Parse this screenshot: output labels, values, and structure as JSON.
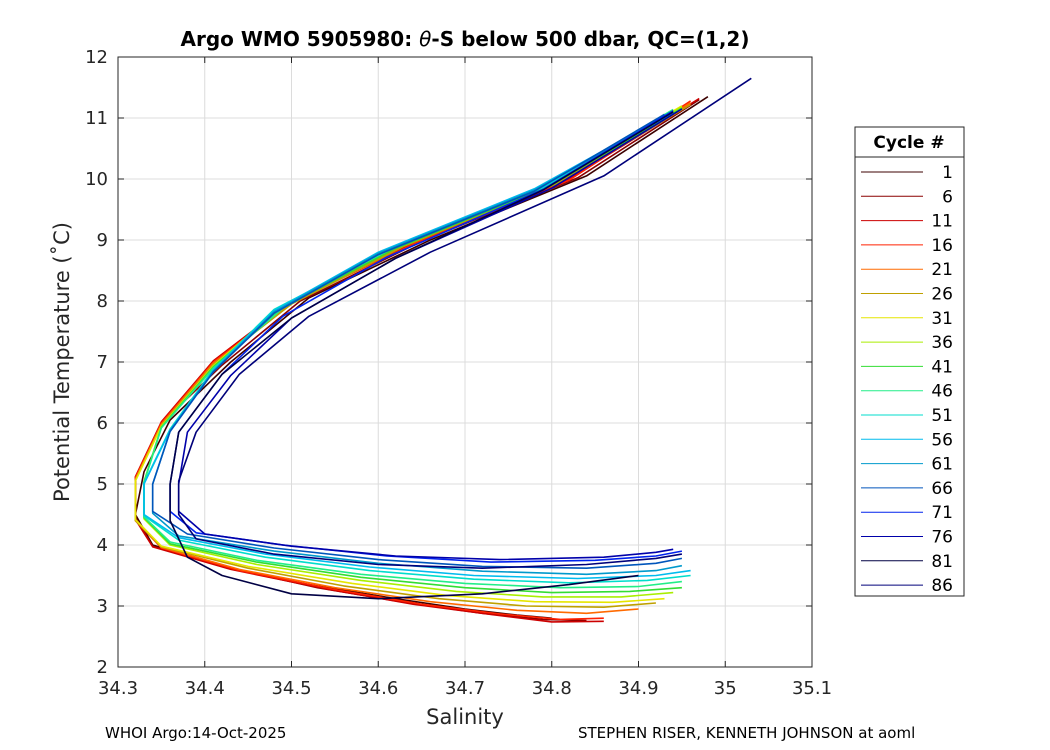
{
  "chart_data": {
    "type": "line",
    "title": "Argo WMO 5905980: θ-S below 500 dbar,  QC=(1,2)",
    "title_parts": {
      "prefix": "Argo WMO 5905980: ",
      "symbol": "θ",
      "suffix": "-S below 500 dbar,  QC=(1,2)"
    },
    "xlabel": "Salinity",
    "ylabel": "Potential Temperature (˚C)",
    "xlim": [
      34.3,
      35.1
    ],
    "ylim": [
      2,
      12
    ],
    "xticks": [
      "34.3",
      "34.4",
      "34.5",
      "34.6",
      "34.7",
      "34.8",
      "34.9",
      "35",
      "35.1"
    ],
    "xtick_values": [
      34.3,
      34.4,
      34.5,
      34.6,
      34.7,
      34.8,
      34.9,
      35.0,
      35.1
    ],
    "yticks": [
      "2",
      "3",
      "4",
      "5",
      "6",
      "7",
      "8",
      "9",
      "10",
      "11",
      "12"
    ],
    "ytick_values": [
      2,
      3,
      4,
      5,
      6,
      7,
      8,
      9,
      10,
      11,
      12
    ],
    "grid": true,
    "legend_title": "Cycle #",
    "legend_position": "right",
    "series": [
      {
        "name": "1",
        "color": "#3c0000",
        "points": [
          [
            34.98,
            11.35
          ],
          [
            34.84,
            10.05
          ],
          [
            34.66,
            9.0
          ],
          [
            34.52,
            8.05
          ],
          [
            34.43,
            7.0
          ],
          [
            34.36,
            6.05
          ],
          [
            34.33,
            5.2
          ],
          [
            34.32,
            4.5
          ],
          [
            34.34,
            4.0
          ],
          [
            34.42,
            3.65
          ],
          [
            34.52,
            3.35
          ],
          [
            34.62,
            3.12
          ],
          [
            34.7,
            2.95
          ],
          [
            34.76,
            2.85
          ],
          [
            34.8,
            2.8
          ]
        ]
      },
      {
        "name": "6",
        "color": "#8b0000",
        "points": [
          [
            34.97,
            11.3
          ],
          [
            34.83,
            10.02
          ],
          [
            34.65,
            8.98
          ],
          [
            34.51,
            8.0
          ],
          [
            34.42,
            6.95
          ],
          [
            34.35,
            6.0
          ],
          [
            34.32,
            5.1
          ],
          [
            34.32,
            4.45
          ],
          [
            34.34,
            3.98
          ],
          [
            34.43,
            3.62
          ],
          [
            34.53,
            3.3
          ],
          [
            34.63,
            3.06
          ],
          [
            34.72,
            2.88
          ],
          [
            34.79,
            2.78
          ],
          [
            34.84,
            2.76
          ]
        ]
      },
      {
        "name": "11",
        "color": "#cc0000",
        "points": [
          [
            34.97,
            11.32
          ],
          [
            34.82,
            10.0
          ],
          [
            34.64,
            8.95
          ],
          [
            34.5,
            8.0
          ],
          [
            34.41,
            7.02
          ],
          [
            34.35,
            6.02
          ],
          [
            34.32,
            5.12
          ],
          [
            34.32,
            4.42
          ],
          [
            34.34,
            3.97
          ],
          [
            34.43,
            3.6
          ],
          [
            34.54,
            3.28
          ],
          [
            34.64,
            3.03
          ],
          [
            34.73,
            2.86
          ],
          [
            34.8,
            2.74
          ],
          [
            34.86,
            2.75
          ]
        ]
      },
      {
        "name": "16",
        "color": "#ff2200",
        "points": [
          [
            34.96,
            11.28
          ],
          [
            34.82,
            9.98
          ],
          [
            34.64,
            8.93
          ],
          [
            34.5,
            7.98
          ],
          [
            34.41,
            7.0
          ],
          [
            34.35,
            6.0
          ],
          [
            34.32,
            5.1
          ],
          [
            34.32,
            4.4
          ],
          [
            34.35,
            3.95
          ],
          [
            34.44,
            3.58
          ],
          [
            34.55,
            3.27
          ],
          [
            34.65,
            3.03
          ],
          [
            34.74,
            2.87
          ],
          [
            34.81,
            2.78
          ],
          [
            34.86,
            2.8
          ]
        ]
      },
      {
        "name": "21",
        "color": "#ff6a00",
        "points": [
          [
            34.96,
            11.25
          ],
          [
            34.81,
            9.97
          ],
          [
            34.63,
            8.92
          ],
          [
            34.5,
            7.96
          ],
          [
            34.41,
            6.98
          ],
          [
            34.35,
            5.98
          ],
          [
            34.32,
            5.08
          ],
          [
            34.32,
            4.4
          ],
          [
            34.35,
            3.96
          ],
          [
            34.44,
            3.6
          ],
          [
            34.55,
            3.3
          ],
          [
            34.66,
            3.07
          ],
          [
            34.76,
            2.93
          ],
          [
            34.84,
            2.88
          ],
          [
            34.9,
            2.95
          ]
        ]
      },
      {
        "name": "26",
        "color": "#bfa000",
        "points": [
          [
            34.96,
            11.22
          ],
          [
            34.81,
            9.95
          ],
          [
            34.63,
            8.9
          ],
          [
            34.5,
            7.95
          ],
          [
            34.41,
            6.96
          ],
          [
            34.35,
            5.96
          ],
          [
            34.32,
            5.06
          ],
          [
            34.32,
            4.4
          ],
          [
            34.35,
            3.97
          ],
          [
            34.45,
            3.62
          ],
          [
            34.56,
            3.33
          ],
          [
            34.67,
            3.12
          ],
          [
            34.77,
            3.0
          ],
          [
            34.86,
            2.98
          ],
          [
            34.92,
            3.05
          ]
        ]
      },
      {
        "name": "31",
        "color": "#e6e600",
        "points": [
          [
            34.95,
            11.2
          ],
          [
            34.8,
            9.93
          ],
          [
            34.62,
            8.88
          ],
          [
            34.49,
            7.93
          ],
          [
            34.41,
            6.94
          ],
          [
            34.35,
            5.95
          ],
          [
            34.32,
            5.05
          ],
          [
            34.32,
            4.42
          ],
          [
            34.35,
            3.98
          ],
          [
            34.45,
            3.65
          ],
          [
            34.57,
            3.37
          ],
          [
            34.68,
            3.17
          ],
          [
            34.78,
            3.07
          ],
          [
            34.87,
            3.06
          ],
          [
            34.93,
            3.12
          ]
        ]
      },
      {
        "name": "36",
        "color": "#aaee00",
        "points": [
          [
            34.95,
            11.18
          ],
          [
            34.8,
            9.92
          ],
          [
            34.62,
            8.87
          ],
          [
            34.49,
            7.92
          ],
          [
            34.41,
            6.93
          ],
          [
            34.35,
            5.94
          ],
          [
            34.33,
            5.04
          ],
          [
            34.33,
            4.43
          ],
          [
            34.36,
            4.0
          ],
          [
            34.46,
            3.68
          ],
          [
            34.58,
            3.42
          ],
          [
            34.69,
            3.24
          ],
          [
            34.79,
            3.15
          ],
          [
            34.88,
            3.15
          ],
          [
            34.94,
            3.22
          ]
        ]
      },
      {
        "name": "41",
        "color": "#33dd33",
        "points": [
          [
            34.95,
            11.16
          ],
          [
            34.8,
            9.9
          ],
          [
            34.62,
            8.86
          ],
          [
            34.49,
            7.9
          ],
          [
            34.41,
            6.92
          ],
          [
            34.35,
            5.93
          ],
          [
            34.33,
            5.03
          ],
          [
            34.33,
            4.45
          ],
          [
            34.36,
            4.02
          ],
          [
            34.46,
            3.72
          ],
          [
            34.58,
            3.47
          ],
          [
            34.7,
            3.3
          ],
          [
            34.8,
            3.22
          ],
          [
            34.89,
            3.24
          ],
          [
            34.95,
            3.3
          ]
        ]
      },
      {
        "name": "46",
        "color": "#22ee88",
        "points": [
          [
            34.94,
            11.14
          ],
          [
            34.79,
            9.88
          ],
          [
            34.61,
            8.84
          ],
          [
            34.49,
            7.88
          ],
          [
            34.41,
            6.9
          ],
          [
            34.35,
            5.92
          ],
          [
            34.33,
            5.02
          ],
          [
            34.33,
            4.46
          ],
          [
            34.36,
            4.05
          ],
          [
            34.46,
            3.75
          ],
          [
            34.58,
            3.52
          ],
          [
            34.7,
            3.37
          ],
          [
            34.81,
            3.3
          ],
          [
            34.9,
            3.32
          ],
          [
            34.95,
            3.4
          ]
        ]
      },
      {
        "name": "51",
        "color": "#00ddcc",
        "points": [
          [
            34.94,
            11.12
          ],
          [
            34.79,
            9.86
          ],
          [
            34.61,
            8.82
          ],
          [
            34.48,
            7.86
          ],
          [
            34.41,
            6.88
          ],
          [
            34.36,
            5.9
          ],
          [
            34.33,
            5.01
          ],
          [
            34.33,
            4.48
          ],
          [
            34.37,
            4.08
          ],
          [
            34.47,
            3.8
          ],
          [
            34.59,
            3.58
          ],
          [
            34.71,
            3.44
          ],
          [
            34.82,
            3.38
          ],
          [
            34.91,
            3.42
          ],
          [
            34.96,
            3.5
          ]
        ]
      },
      {
        "name": "56",
        "color": "#00bbee",
        "points": [
          [
            34.94,
            11.1
          ],
          [
            34.78,
            9.84
          ],
          [
            34.6,
            8.8
          ],
          [
            34.48,
            7.84
          ],
          [
            34.41,
            6.86
          ],
          [
            34.36,
            5.88
          ],
          [
            34.33,
            5.0
          ],
          [
            34.33,
            4.5
          ],
          [
            34.37,
            4.12
          ],
          [
            34.47,
            3.85
          ],
          [
            34.59,
            3.64
          ],
          [
            34.71,
            3.5
          ],
          [
            34.83,
            3.45
          ],
          [
            34.92,
            3.5
          ],
          [
            34.96,
            3.58
          ]
        ]
      },
      {
        "name": "61",
        "color": "#0099cc",
        "points": [
          [
            34.94,
            11.08
          ],
          [
            34.78,
            9.82
          ],
          [
            34.6,
            8.78
          ],
          [
            34.48,
            7.82
          ],
          [
            34.41,
            6.85
          ],
          [
            34.36,
            5.87
          ],
          [
            34.34,
            5.0
          ],
          [
            34.34,
            4.52
          ],
          [
            34.37,
            4.15
          ],
          [
            34.48,
            3.9
          ],
          [
            34.6,
            3.7
          ],
          [
            34.72,
            3.57
          ],
          [
            34.84,
            3.52
          ],
          [
            34.92,
            3.58
          ],
          [
            34.95,
            3.66
          ]
        ]
      },
      {
        "name": "66",
        "color": "#0055bb",
        "points": [
          [
            34.93,
            11.06
          ],
          [
            34.78,
            9.8
          ],
          [
            34.6,
            8.76
          ],
          [
            34.48,
            7.8
          ],
          [
            34.41,
            6.84
          ],
          [
            34.36,
            5.86
          ],
          [
            34.34,
            5.0
          ],
          [
            34.34,
            4.55
          ],
          [
            34.38,
            4.18
          ],
          [
            34.48,
            3.95
          ],
          [
            34.6,
            3.76
          ],
          [
            34.72,
            3.65
          ],
          [
            34.84,
            3.62
          ],
          [
            34.92,
            3.7
          ],
          [
            34.95,
            3.78
          ]
        ]
      },
      {
        "name": "71",
        "color": "#0022ee",
        "points": [
          [
            34.94,
            11.12
          ],
          [
            34.79,
            9.83
          ],
          [
            34.61,
            8.72
          ],
          [
            34.49,
            7.75
          ],
          [
            34.42,
            6.8
          ],
          [
            34.37,
            5.85
          ],
          [
            34.36,
            5.0
          ],
          [
            34.36,
            4.55
          ],
          [
            34.39,
            4.2
          ],
          [
            34.49,
            4.0
          ],
          [
            34.61,
            3.82
          ],
          [
            34.73,
            3.72
          ],
          [
            34.85,
            3.75
          ],
          [
            34.92,
            3.82
          ],
          [
            34.95,
            3.9
          ]
        ]
      },
      {
        "name": "76",
        "color": "#0000aa",
        "points": [
          [
            34.95,
            11.15
          ],
          [
            34.8,
            9.85
          ],
          [
            34.62,
            8.7
          ],
          [
            34.5,
            7.72
          ],
          [
            34.43,
            6.78
          ],
          [
            34.38,
            5.85
          ],
          [
            34.37,
            5.0
          ],
          [
            34.37,
            4.55
          ],
          [
            34.4,
            4.18
          ],
          [
            34.5,
            3.98
          ],
          [
            34.62,
            3.82
          ],
          [
            34.74,
            3.76
          ],
          [
            34.86,
            3.8
          ],
          [
            34.92,
            3.88
          ],
          [
            34.94,
            3.93
          ]
        ]
      },
      {
        "name": "81",
        "color": "#000044",
        "points": [
          [
            34.94,
            11.1
          ],
          [
            34.79,
            9.82
          ],
          [
            34.62,
            8.7
          ],
          [
            34.5,
            7.72
          ],
          [
            34.42,
            6.8
          ],
          [
            34.37,
            5.85
          ],
          [
            34.36,
            5.0
          ],
          [
            34.36,
            4.4
          ],
          [
            34.38,
            3.8
          ],
          [
            34.42,
            3.5
          ],
          [
            34.5,
            3.2
          ],
          [
            34.6,
            3.12
          ],
          [
            34.72,
            3.2
          ],
          [
            34.82,
            3.35
          ],
          [
            34.9,
            3.5
          ]
        ]
      },
      {
        "name": "86",
        "color": "#00007a",
        "points": [
          [
            35.03,
            11.65
          ],
          [
            34.86,
            10.05
          ],
          [
            34.66,
            8.8
          ],
          [
            34.52,
            7.75
          ],
          [
            34.44,
            6.8
          ],
          [
            34.39,
            5.85
          ],
          [
            34.37,
            5.05
          ],
          [
            34.37,
            4.5
          ],
          [
            34.39,
            4.1
          ],
          [
            34.48,
            3.85
          ],
          [
            34.6,
            3.68
          ],
          [
            34.72,
            3.62
          ],
          [
            34.84,
            3.68
          ],
          [
            34.92,
            3.78
          ],
          [
            34.95,
            3.85
          ]
        ]
      }
    ]
  },
  "footer": {
    "left": "WHOI Argo:14-Oct-2025",
    "right": "STEPHEN RISER, KENNETH JOHNSON at aoml"
  }
}
